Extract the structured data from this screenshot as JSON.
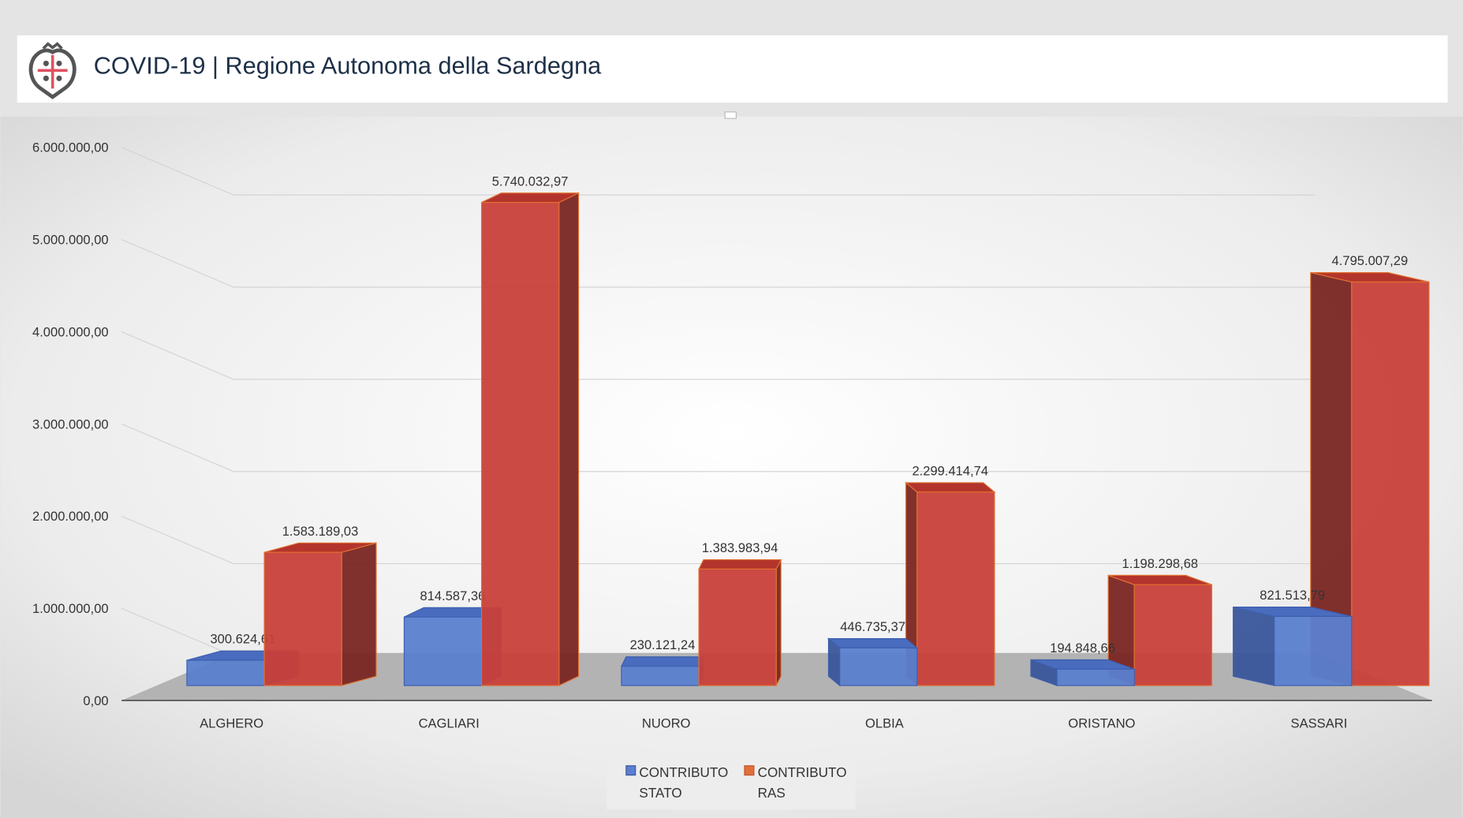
{
  "header": {
    "title": "COVID-19 | Regione Autonoma della Sardegna",
    "logo": "Regione Sardegna coat of arms (Four Moors)"
  },
  "chart_data": {
    "type": "bar",
    "style": "3d-clustered",
    "categories": [
      "ALGHERO",
      "CAGLIARI",
      "NUORO",
      "OLBIA",
      "ORISTANO",
      "SASSARI"
    ],
    "series": [
      {
        "name": "CONTRIBUTO STATO",
        "legend_lines": [
          "CONTRIBUTO",
          "STATO"
        ],
        "color": "#5b7fcf",
        "values": [
          300624.61,
          814587.36,
          230121.24,
          446735.37,
          194848.66,
          821513.79
        ],
        "labels": [
          "300.624,61",
          "814.587,36",
          "230.121,24",
          "446.735,37",
          "194.848,66",
          "821.513,79"
        ]
      },
      {
        "name": "CONTRIBUTO RAS",
        "legend_lines": [
          "CONTRIBUTO",
          "RAS"
        ],
        "color": "#c9403a",
        "values": [
          1583189.03,
          5740032.97,
          1383983.94,
          2299414.74,
          1198298.68,
          4795007.29
        ],
        "labels": [
          "1.583.189,03",
          "5.740.032,97",
          "1.383.983,94",
          "2.299.414,74",
          "1.198.298,68",
          "4.795.007,29"
        ]
      }
    ],
    "yticks": [
      "0,00",
      "1.000.000,00",
      "2.000.000,00",
      "3.000.000,00",
      "4.000.000,00",
      "5.000.000,00",
      "6.000.000,00"
    ],
    "ylim": [
      0,
      6000000
    ],
    "grid": true,
    "legend_position": "bottom"
  }
}
